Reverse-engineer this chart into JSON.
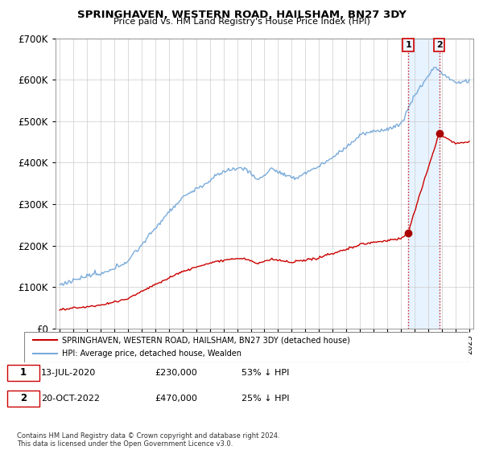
{
  "title": "SPRINGHAVEN, WESTERN ROAD, HAILSHAM, BN27 3DY",
  "subtitle": "Price paid vs. HM Land Registry's House Price Index (HPI)",
  "legend_line1": "SPRINGHAVEN, WESTERN ROAD, HAILSHAM, BN27 3DY (detached house)",
  "legend_line2": "HPI: Average price, detached house, Wealden",
  "footer": "Contains HM Land Registry data © Crown copyright and database right 2024.\nThis data is licensed under the Open Government Licence v3.0.",
  "sale1_label": "1",
  "sale1_date": "13-JUL-2020",
  "sale1_price": "£230,000",
  "sale1_note": "53% ↓ HPI",
  "sale2_label": "2",
  "sale2_date": "20-OCT-2022",
  "sale2_price": "£470,000",
  "sale2_note": "25% ↓ HPI",
  "sale1_year": 2020.53,
  "sale1_value": 230000,
  "sale2_year": 2022.8,
  "sale2_value": 470000,
  "hpi_color": "#7aabdb",
  "price_color": "#cc0000",
  "sale_marker_color": "#aa0000",
  "shade_color": "#ddeeff",
  "annotation_bg": "#f0f4ff",
  "ylim_max": 700000,
  "xlim_start": 1994.7,
  "xlim_end": 2025.3
}
